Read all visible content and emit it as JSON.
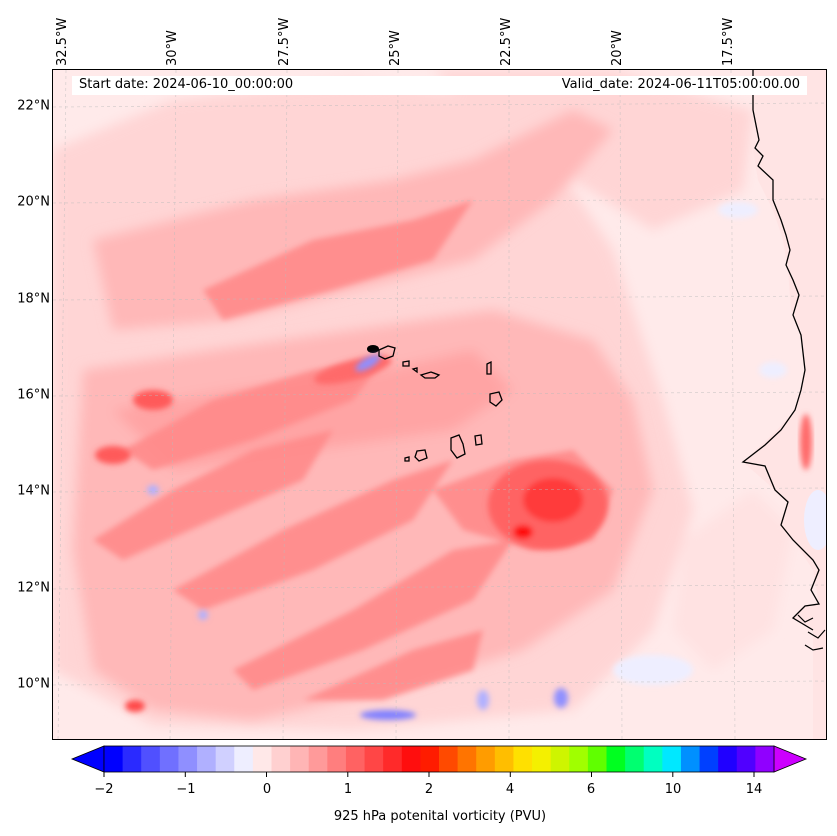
{
  "info": {
    "start_date": "Start date: 2024-06-10_00:00:00",
    "valid_date": "Valid_date: 2024-06-11T05:00:00.00"
  },
  "longitude_labels": [
    "32.5°W",
    "30°W",
    "27.5°W",
    "25°W",
    "22.5°W",
    "20°W",
    "17.5°W"
  ],
  "latitude_labels": [
    "22°N",
    "20°N",
    "18°N",
    "16°N",
    "14°N",
    "12°N",
    "10°N"
  ],
  "colorbar": {
    "label": "925 hPa potenital vorticity (PVU)",
    "tick_labels": [
      "−2",
      "−1",
      "0",
      "1",
      "2",
      "4",
      "6",
      "10",
      "14"
    ],
    "colors": [
      "#0000ff",
      "#2a2aff",
      "#5050ff",
      "#7070ff",
      "#8f8fff",
      "#b0b0ff",
      "#d0d0ff",
      "#eeeeff",
      "#ffe8e8",
      "#ffd0d0",
      "#ffb5b5",
      "#ff9a9a",
      "#ff7e7e",
      "#ff6262",
      "#ff4646",
      "#ff2a2a",
      "#ff0e0e",
      "#ff1c00",
      "#ff4a00",
      "#ff7400",
      "#ff9c00",
      "#ffbe00",
      "#ffe000",
      "#f4f000",
      "#cef500",
      "#a0ff00",
      "#60ff00",
      "#00ff20",
      "#00ff70",
      "#00ffc0",
      "#00e8ff",
      "#0090ff",
      "#0040ff",
      "#2000ff",
      "#5000ff",
      "#9000ff"
    ],
    "extend_low_color": "#0000ff",
    "extend_high_color": "#cc00ff"
  },
  "map": {
    "region": "Cabo Verde / West Africa, 9°N–22.8°N, 33°W–16°W",
    "coastline_color": "#000000",
    "land_visible": "Africa west coast (Senegal, Mauritania, Guinea-Bissau)",
    "islands": "Cabo Verde archipelago"
  }
}
